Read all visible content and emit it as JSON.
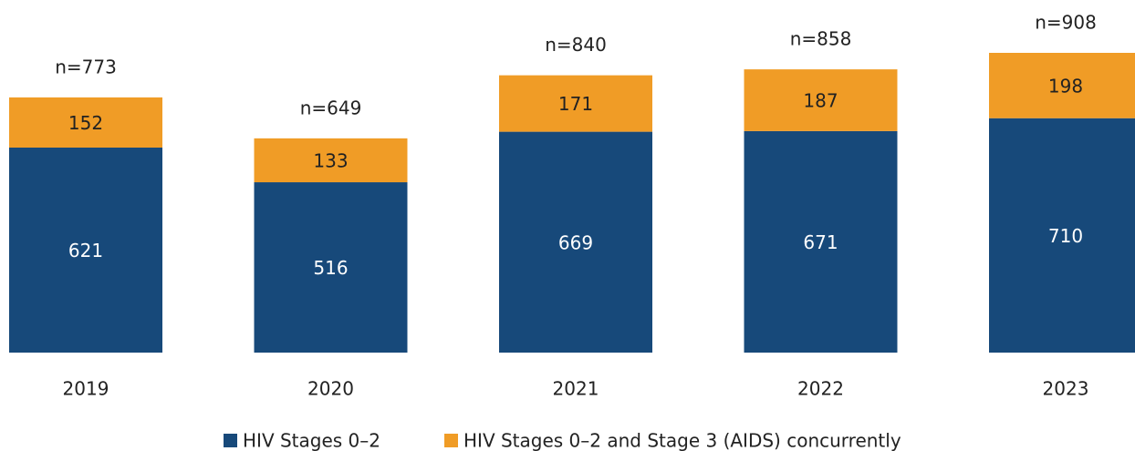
{
  "chart_data": {
    "type": "stacked_bar",
    "categories": [
      "2019",
      "2020",
      "2021",
      "2022",
      "2023"
    ],
    "series": [
      {
        "name": "HIV Stages 0–2",
        "color": "#17497a",
        "values": [
          621,
          516,
          669,
          671,
          710
        ]
      },
      {
        "name": "HIV Stages 0–2 and Stage 3 (AIDS) concurrently",
        "color": "#f09c26",
        "values": [
          152,
          133,
          171,
          187,
          198
        ]
      }
    ],
    "totals": [
      773,
      649,
      840,
      858,
      908
    ],
    "total_labels": [
      "n=773",
      "n=649",
      "n=840",
      "n=858",
      "n=908"
    ],
    "legend": "bottom"
  }
}
